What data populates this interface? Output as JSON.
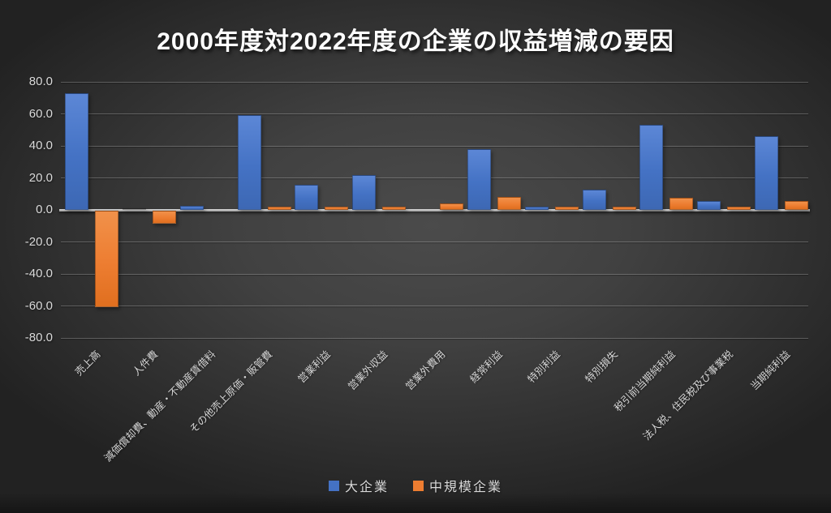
{
  "chart_data": {
    "type": "bar",
    "title": "2000年度対2022年度の企業の収益増減の要因",
    "categories": [
      "売上高",
      "人件費",
      "減価償却費、動産・不動産賃借料",
      "その他売上原価・販管費",
      "営業利益",
      "営業外収益",
      "営業外費用",
      "経常利益",
      "特別利益",
      "特別損失",
      "税引前当期純利益",
      "法人税、住民税及び事業税",
      "当期純利益"
    ],
    "series": [
      {
        "name": "大企業",
        "color": "#4472C4",
        "gradient_top": "#5c87d6",
        "gradient_bottom": "#3d68b4",
        "values": [
          73,
          1,
          2.5,
          59,
          15.5,
          22,
          0,
          38,
          2,
          12.5,
          53,
          5.5,
          46
        ]
      },
      {
        "name": "中規模企業",
        "color": "#ED7D31",
        "gradient_top": "#f1914a",
        "gradient_bottom": "#e06f1f",
        "values": [
          -60,
          -8,
          0,
          2,
          2,
          2,
          4,
          8,
          2,
          2,
          7.5,
          2,
          5.5
        ]
      }
    ],
    "ylim": [
      -80,
      80
    ],
    "ytick_step": 20,
    "ytick_labels": [
      "80.0",
      "60.0",
      "40.0",
      "20.0",
      "0.0",
      "-20.0",
      "-40.0",
      "-60.0",
      "-80.0"
    ],
    "grid": true,
    "legend_position": "bottom",
    "colors": {
      "title_text": "#FFFFFF",
      "axis_text": "#D9D9D9",
      "gridline": "#DEDEDE"
    }
  }
}
